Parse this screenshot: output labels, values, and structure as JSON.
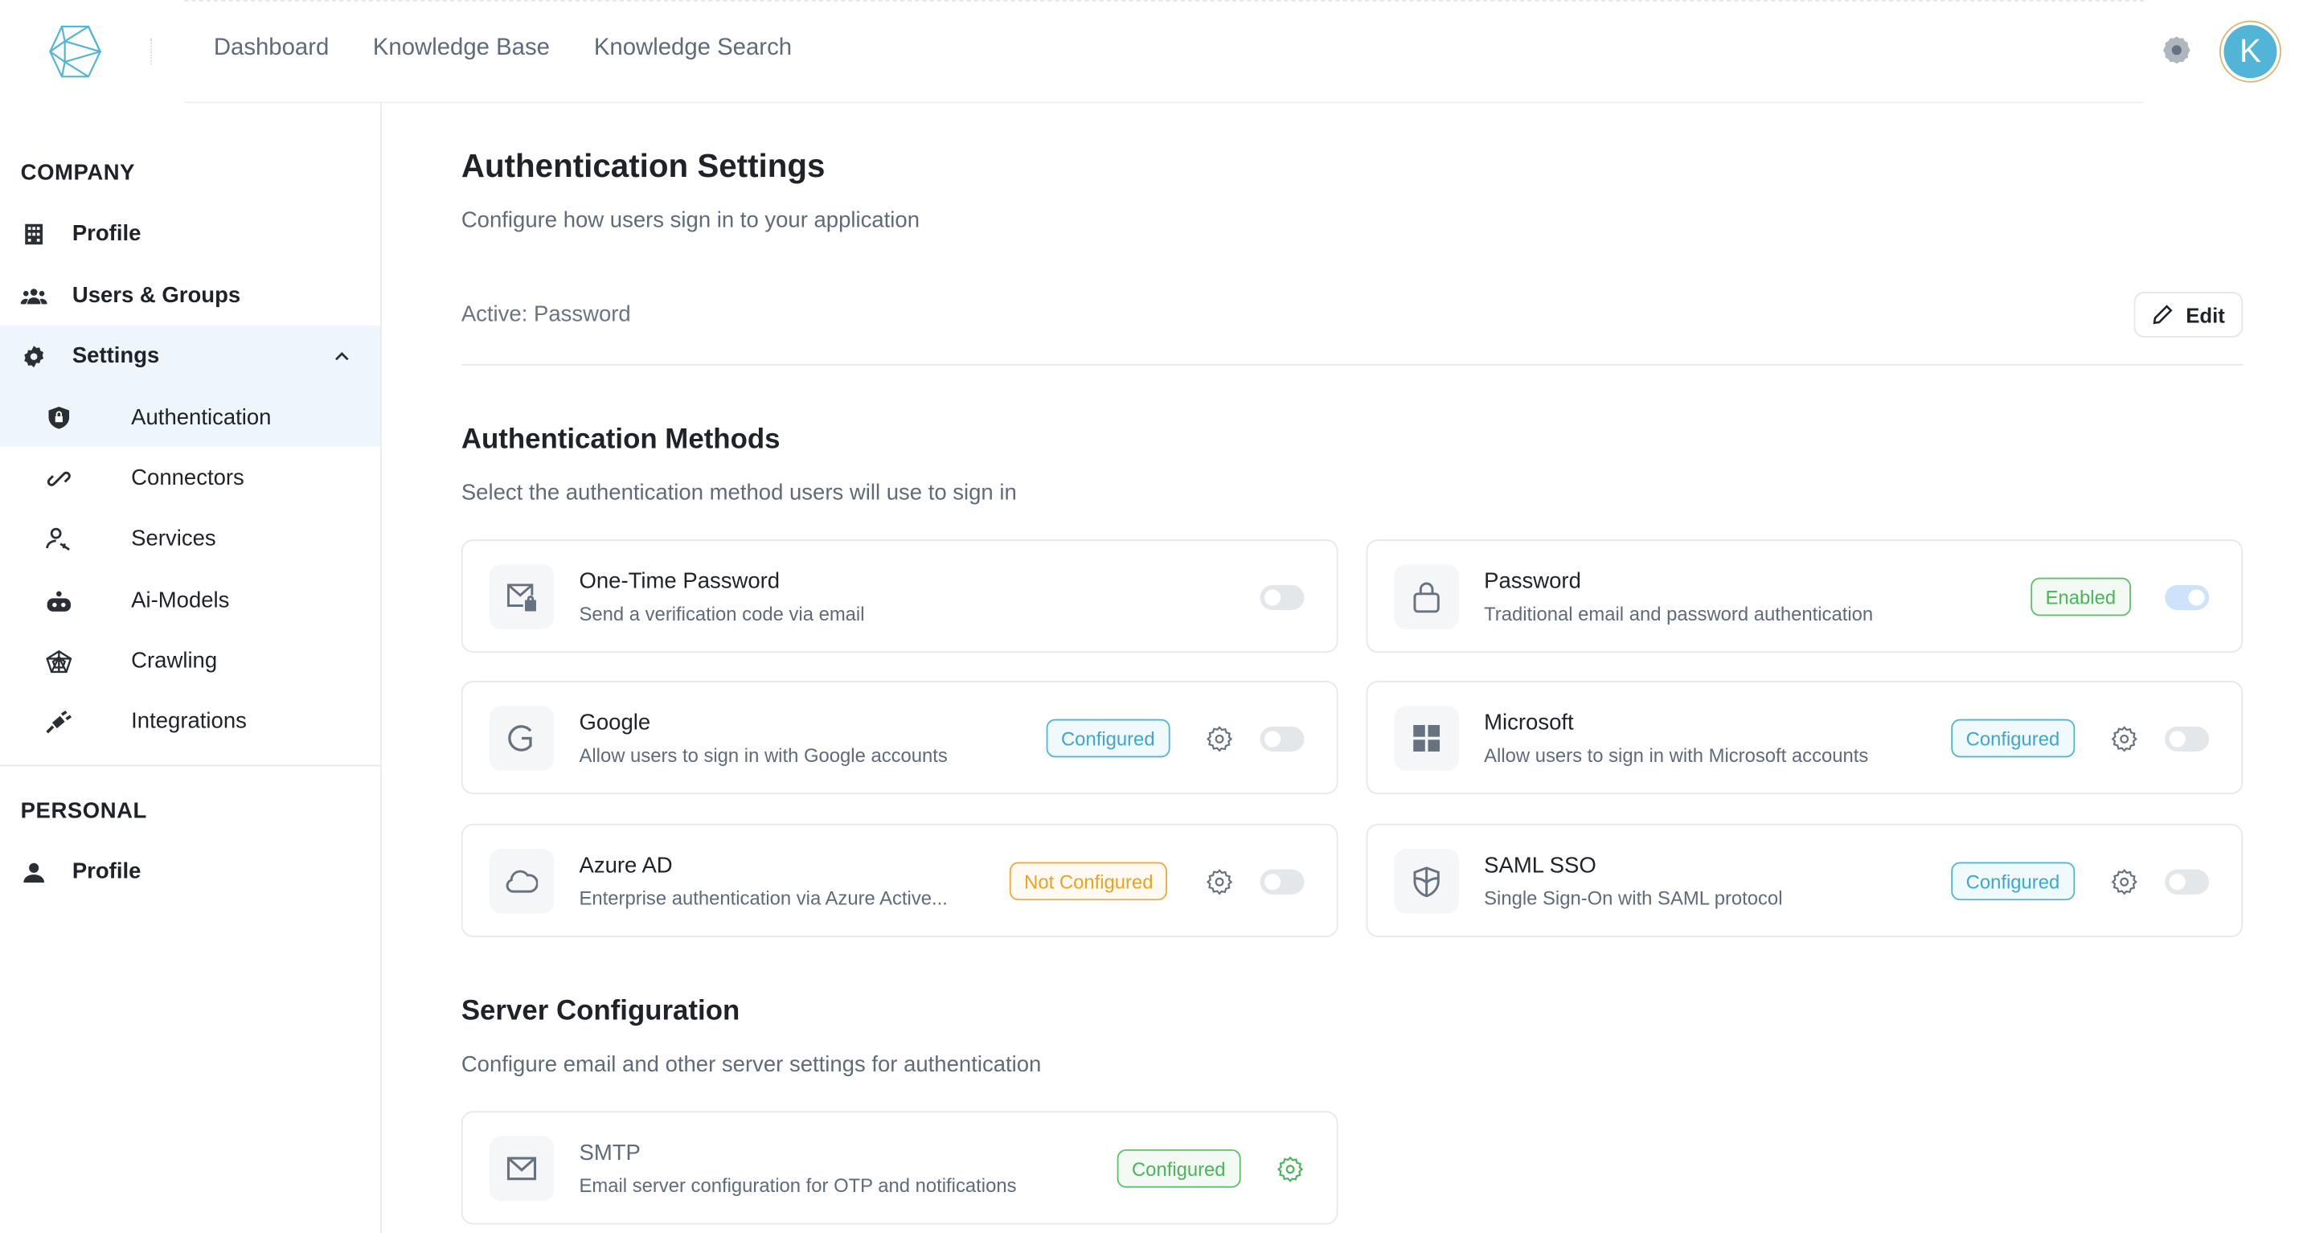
{
  "header": {
    "nav": [
      "Dashboard",
      "Knowledge Base",
      "Knowledge Search"
    ],
    "avatar_letter": "K",
    "avatar_color": "#52b5d8",
    "icons": {
      "logo": "hexagon-logo",
      "settings": "gear-icon"
    }
  },
  "sidebar": {
    "company_title": "COMPANY",
    "company_items": [
      {
        "label": "Profile",
        "icon": "building-icon"
      },
      {
        "label": "Users & Groups",
        "icon": "users-icon"
      },
      {
        "label": "Settings",
        "icon": "gear-icon",
        "expanded": true
      }
    ],
    "settings_items": [
      {
        "label": "Authentication",
        "icon": "shield-lock-icon",
        "active": true
      },
      {
        "label": "Connectors",
        "icon": "link-icon"
      },
      {
        "label": "Services",
        "icon": "user-wrench-icon"
      },
      {
        "label": "Ai-Models",
        "icon": "robot-icon"
      },
      {
        "label": "Crawling",
        "icon": "spider-web-icon"
      },
      {
        "label": "Integrations",
        "icon": "plug-icon"
      }
    ],
    "personal_title": "PERSONAL",
    "personal_items": [
      {
        "label": "Profile",
        "icon": "user-icon"
      }
    ]
  },
  "main": {
    "title": "Authentication Settings",
    "subtitle": "Configure how users sign in to your application",
    "active": "Active: Password",
    "edit_label": "Edit",
    "methods_title": "Authentication Methods",
    "methods_subtitle": "Select the authentication method users will use to sign in",
    "methods": [
      {
        "title": "One-Time Password",
        "desc": "Send a verification code via email",
        "icon": "mail-lock-icon",
        "badge": "",
        "enabled": false
      },
      {
        "title": "Password",
        "desc": "Traditional email and password authentication",
        "icon": "lock-icon",
        "badge": "Enabled",
        "enabled": true
      },
      {
        "title": "Google",
        "desc": "Allow users to sign in with Google accounts",
        "icon": "google-icon",
        "badge": "Configured",
        "enabled": false
      },
      {
        "title": "Microsoft",
        "desc": "Allow users to sign in with Microsoft accounts",
        "icon": "windows-icon",
        "badge": "Configured",
        "enabled": false
      },
      {
        "title": "Azure AD",
        "desc": "Enterprise authentication via Azure Active...",
        "icon": "cloud-icon",
        "badge": "Not Configured",
        "enabled": false
      },
      {
        "title": "SAML SSO",
        "desc": "Single Sign-On with SAML protocol",
        "icon": "shield-icon",
        "badge": "Configured",
        "enabled": false
      }
    ],
    "server_title": "Server Configuration",
    "server_subtitle": "Configure email and other server settings for authentication",
    "smtp": {
      "title": "SMTP",
      "desc": "Email server configuration for OTP and notifications",
      "icon": "mail-icon",
      "badge": "Configured"
    }
  },
  "colors": {
    "accent": "#52b5d8",
    "enabled": "#4bb55a",
    "warning": "#f0a020",
    "active_bg": "#eef5fd"
  }
}
